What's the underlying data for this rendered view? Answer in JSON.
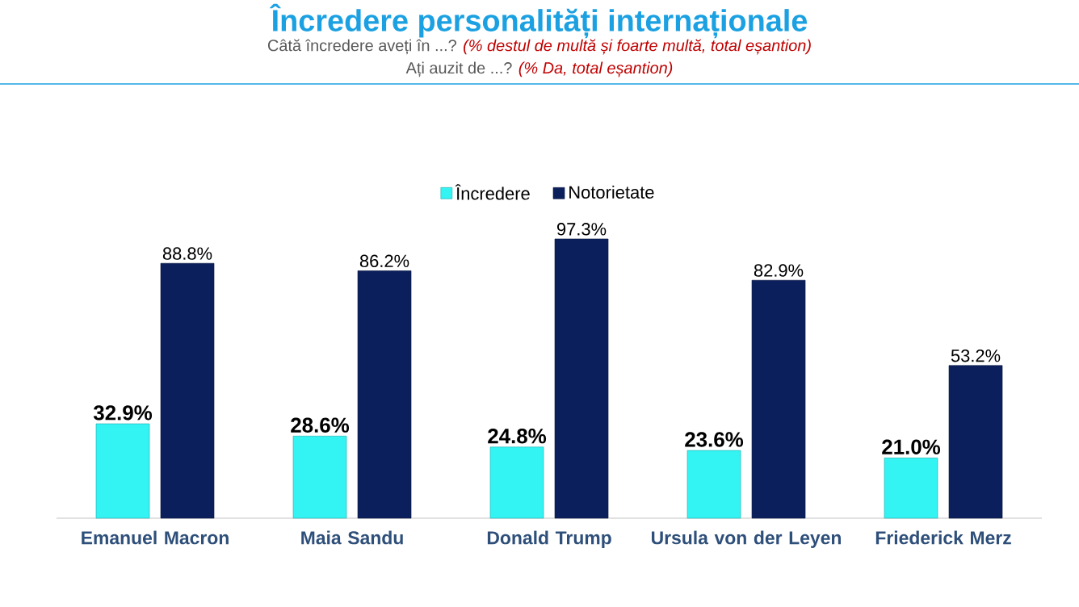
{
  "chart_data": {
    "type": "bar",
    "title": "Încredere personalități internaționale",
    "subtitle": "Câtă încredere aveți în ...?",
    "annotations": [
      "(% destul de multă și foarte multă,  total eșantion)",
      "Ați auzit de ...?",
      "(% Da, total eșantion)"
    ],
    "categories": [
      "Emanuel Macron",
      "Maia Sandu",
      "Donald Trump",
      "Ursula von der Leyen",
      "Friederick Merz"
    ],
    "series": [
      {
        "name": "Încredere",
        "color": "#33f3f3",
        "values": [
          32.9,
          28.6,
          24.8,
          23.6,
          21.0
        ],
        "value_labels": [
          "32.9%",
          "28.6%",
          "24.8%",
          "23.6%",
          "21.0%"
        ]
      },
      {
        "name": "Notorietate",
        "color": "#0b1f5c",
        "values": [
          88.8,
          86.2,
          97.3,
          82.9,
          53.2
        ],
        "value_labels": [
          "88.8%",
          "86.2%",
          "97.3%",
          "82.9%",
          "53.2%"
        ]
      }
    ],
    "legend": "top"
  }
}
